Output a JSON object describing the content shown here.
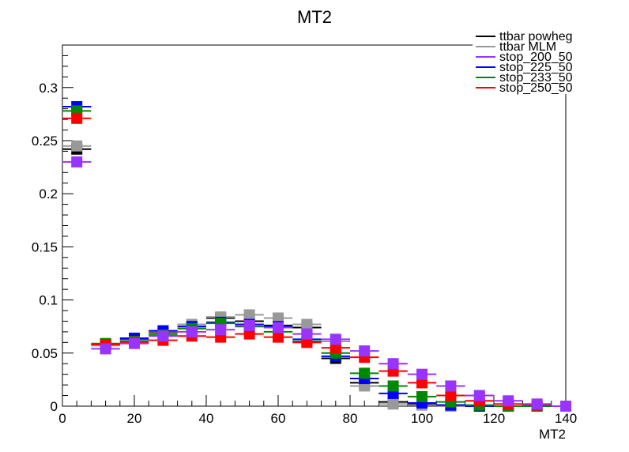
{
  "chart_data": {
    "type": "scatter",
    "title": "MT2",
    "xlabel": "MT2",
    "ylabel": "",
    "xlim": [
      0,
      140
    ],
    "ylim": [
      0,
      0.34
    ],
    "x_ticks": [
      "0",
      "20",
      "40",
      "60",
      "80",
      "100",
      "120",
      "140"
    ],
    "y_ticks": [
      "0",
      "0.05",
      "0.1",
      "0.15",
      "0.2",
      "0.25",
      "0.3"
    ],
    "bin_width": 8,
    "x": [
      4,
      12,
      20,
      28,
      36,
      44,
      52,
      60,
      68,
      76,
      84,
      92,
      100,
      108,
      116,
      124,
      132,
      140
    ],
    "legend_position": "top-right",
    "series": [
      {
        "name": "ttbar powheg",
        "color": "#000000",
        "values": [
          0.242,
          0.058,
          0.063,
          0.069,
          0.075,
          0.083,
          0.08,
          0.076,
          0.074,
          0.045,
          0.022,
          0.004,
          0.002,
          0.001,
          0.0,
          0.0,
          0.0,
          0.0
        ]
      },
      {
        "name": "ttbar MLM",
        "color": "#999999",
        "values": [
          0.245,
          0.057,
          0.062,
          0.07,
          0.077,
          0.084,
          0.086,
          0.083,
          0.077,
          0.061,
          0.019,
          0.002,
          0.001,
          0.0,
          0.0,
          0.0,
          0.0,
          0.0
        ]
      },
      {
        "name": "stop_200_50",
        "color": "#9933ff",
        "values": [
          0.23,
          0.054,
          0.059,
          0.066,
          0.07,
          0.072,
          0.076,
          0.074,
          0.068,
          0.063,
          0.052,
          0.04,
          0.03,
          0.019,
          0.01,
          0.005,
          0.002,
          0.0
        ]
      },
      {
        "name": "stop_225_50",
        "color": "#0000ff",
        "values": [
          0.282,
          0.058,
          0.064,
          0.071,
          0.075,
          0.079,
          0.077,
          0.075,
          0.063,
          0.047,
          0.026,
          0.012,
          0.003,
          0.001,
          0.0,
          0.0,
          0.0,
          0.0
        ]
      },
      {
        "name": "stop_233_50",
        "color": "#008800",
        "values": [
          0.278,
          0.059,
          0.061,
          0.067,
          0.073,
          0.078,
          0.075,
          0.07,
          0.061,
          0.05,
          0.031,
          0.019,
          0.009,
          0.004,
          0.001,
          0.0,
          0.0,
          0.0
        ]
      },
      {
        "name": "stop_250_50",
        "color": "#ff0000",
        "values": [
          0.271,
          0.058,
          0.06,
          0.062,
          0.066,
          0.065,
          0.068,
          0.065,
          0.06,
          0.055,
          0.046,
          0.033,
          0.022,
          0.01,
          0.005,
          0.002,
          0.001,
          0.0
        ]
      }
    ]
  }
}
